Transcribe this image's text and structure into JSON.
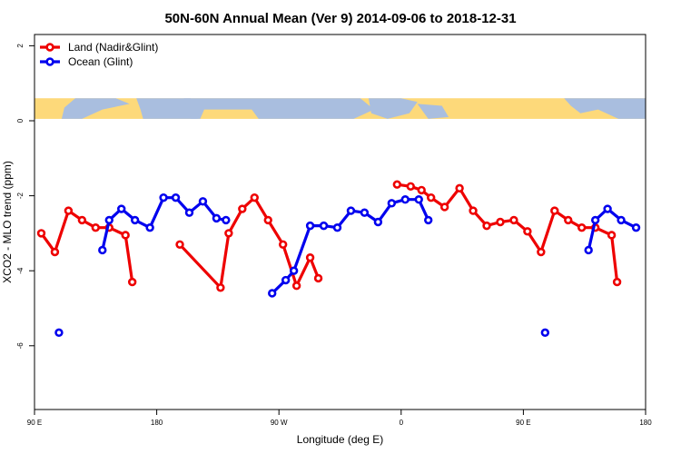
{
  "chart_data": {
    "type": "line",
    "title": "50N-60N Annual Mean (Ver 9)   2014-09-06 to 2018-12-31",
    "xlabel": "Longitude (deg E)",
    "ylabel": "XCO2 - MLO trend (ppm)",
    "xlim": [
      90,
      540
    ],
    "ylim": [
      -7.7,
      2.3
    ],
    "x_ticks": [
      {
        "value": 90,
        "label": "90 E"
      },
      {
        "value": 180,
        "label": "180"
      },
      {
        "value": 270,
        "label": "90 W"
      },
      {
        "value": 360,
        "label": "0"
      },
      {
        "value": 450,
        "label": "90 E"
      },
      {
        "value": 540,
        "label": "180"
      }
    ],
    "y_ticks": [
      {
        "value": 2,
        "label": "2"
      },
      {
        "value": 0,
        "label": "0"
      },
      {
        "value": -2,
        "label": "-2"
      },
      {
        "value": -4,
        "label": "-4"
      },
      {
        "value": -6,
        "label": "-6"
      }
    ],
    "legend_position": "top-left",
    "grid": false,
    "map_strip": {
      "y_range": [
        0.05,
        0.6
      ],
      "ocean_color": "#a9bedf",
      "land_color": "#fdd97a"
    },
    "series": [
      {
        "name": "Land (Nadir&Glint)",
        "color": "#ee0000",
        "segments": [
          [
            [
              95,
              -3
            ],
            [
              105,
              -3.5
            ],
            [
              115,
              -2.4
            ],
            [
              125,
              -2.65
            ],
            [
              135,
              -2.85
            ],
            [
              145,
              -2.85
            ],
            [
              157,
              -3.05
            ],
            [
              162,
              -4.3
            ]
          ],
          [
            [
              197,
              -3.3
            ],
            [
              227,
              -4.45
            ],
            [
              233,
              -3
            ],
            [
              243,
              -2.35
            ],
            [
              252,
              -2.05
            ],
            [
              262,
              -2.65
            ],
            [
              273,
              -3.3
            ],
            [
              283,
              -4.4
            ],
            [
              293,
              -3.65
            ],
            [
              299,
              -4.2
            ]
          ],
          [
            [
              357,
              -1.7
            ],
            [
              367,
              -1.75
            ],
            [
              375,
              -1.85
            ],
            [
              382,
              -2.05
            ],
            [
              392,
              -2.3
            ],
            [
              403,
              -1.8
            ],
            [
              413,
              -2.4
            ],
            [
              423,
              -2.8
            ],
            [
              433,
              -2.7
            ],
            [
              443,
              -2.65
            ],
            [
              453,
              -2.95
            ],
            [
              463,
              -3.5
            ],
            [
              473,
              -2.4
            ],
            [
              483,
              -2.65
            ],
            [
              493,
              -2.85
            ],
            [
              503,
              -2.85
            ],
            [
              515,
              -3.05
            ],
            [
              519,
              -4.3
            ]
          ]
        ],
        "points": []
      },
      {
        "name": "Ocean (Glint)",
        "color": "#0000ee",
        "segments": [
          [
            [
              140,
              -3.45
            ],
            [
              145,
              -2.65
            ],
            [
              154,
              -2.35
            ],
            [
              164,
              -2.65
            ],
            [
              175,
              -2.85
            ],
            [
              185,
              -2.05
            ],
            [
              194,
              -2.05
            ],
            [
              204,
              -2.45
            ],
            [
              214,
              -2.15
            ],
            [
              224,
              -2.6
            ],
            [
              231,
              -2.65
            ]
          ],
          [
            [
              265,
              -4.6
            ],
            [
              275,
              -4.25
            ],
            [
              281,
              -4
            ],
            [
              293,
              -2.8
            ],
            [
              303,
              -2.8
            ],
            [
              313,
              -2.85
            ],
            [
              323,
              -2.4
            ],
            [
              333,
              -2.45
            ],
            [
              343,
              -2.7
            ],
            [
              353,
              -2.2
            ],
            [
              363,
              -2.1
            ],
            [
              373,
              -2.1
            ],
            [
              380,
              -2.65
            ]
          ],
          [
            [
              498,
              -3.45
            ],
            [
              503,
              -2.65
            ],
            [
              512,
              -2.35
            ],
            [
              522,
              -2.65
            ],
            [
              533,
              -2.85
            ]
          ]
        ],
        "points": [
          [
            108,
            -5.65
          ],
          [
            466,
            -5.65
          ]
        ]
      }
    ]
  }
}
